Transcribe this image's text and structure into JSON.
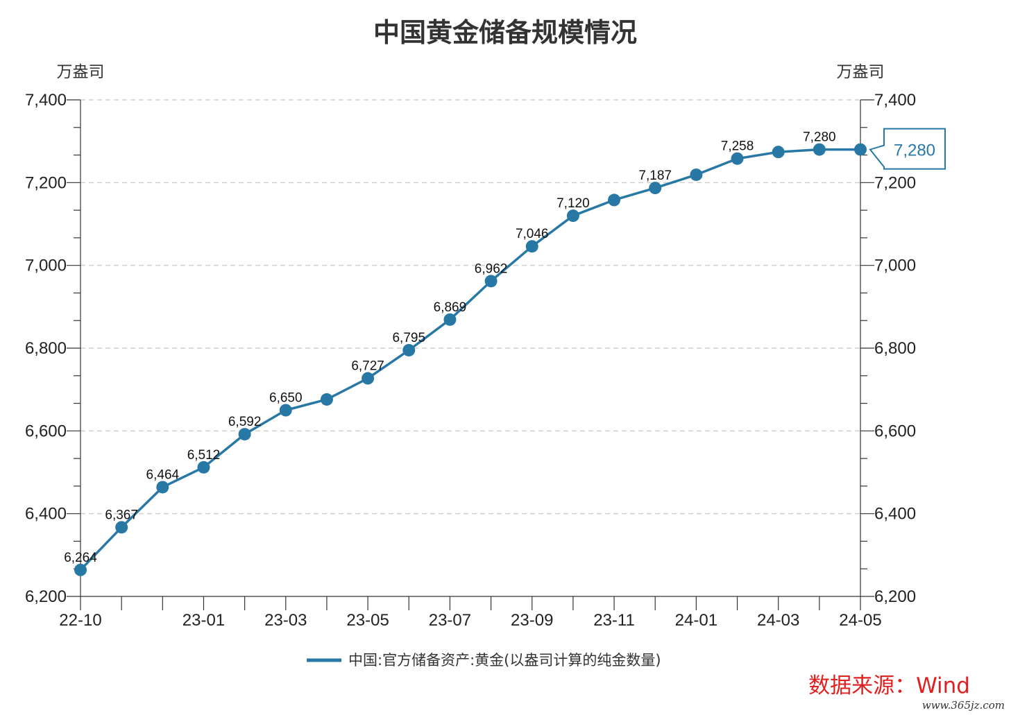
{
  "colors": {
    "series": "#2878a5",
    "source": "#e02020",
    "grid": "#d0d0d0",
    "axis": "#333333"
  },
  "chart_data": {
    "type": "line",
    "title": "中国黄金储备规模情况",
    "ylabel_left": "万盎司",
    "ylabel_right": "万盎司",
    "ylim": [
      6200,
      7400
    ],
    "yticks": [
      "6,200",
      "6,400",
      "6,600",
      "6,800",
      "7,000",
      "7,200",
      "7,400"
    ],
    "xtick_labels": [
      "22-10",
      "23-01",
      "23-03",
      "23-05",
      "23-07",
      "23-09",
      "23-11",
      "24-01",
      "24-03",
      "24-05"
    ],
    "x": [
      "22-10",
      "22-11",
      "22-12",
      "23-01",
      "23-02",
      "23-03",
      "23-04",
      "23-05",
      "23-06",
      "23-07",
      "23-08",
      "23-09",
      "23-10",
      "23-11",
      "23-12",
      "24-01",
      "24-02",
      "24-03",
      "24-04",
      "24-05"
    ],
    "series": [
      {
        "name": "中国:官方储备资产:黄金(以盎司计算的纯金数量)",
        "values": [
          6264,
          6367,
          6464,
          6512,
          6592,
          6650,
          6676,
          6727,
          6795,
          6869,
          6962,
          7046,
          7120,
          7158,
          7187,
          7219,
          7258,
          7274,
          7280,
          7280
        ],
        "labels": [
          "6,264",
          "6,367",
          "6,464",
          "6,512",
          "6,592",
          "6,650",
          "",
          "6,727",
          "6,795",
          "6,869",
          "6,962",
          "7,046",
          "7,120",
          "",
          "7,187",
          "",
          "7,258",
          "",
          "7,280",
          ""
        ]
      }
    ],
    "callout": "7,280",
    "grid": true,
    "legend_position": "bottom-center"
  },
  "source_note": "数据来源：Wind",
  "watermark": "www.365jz.com"
}
